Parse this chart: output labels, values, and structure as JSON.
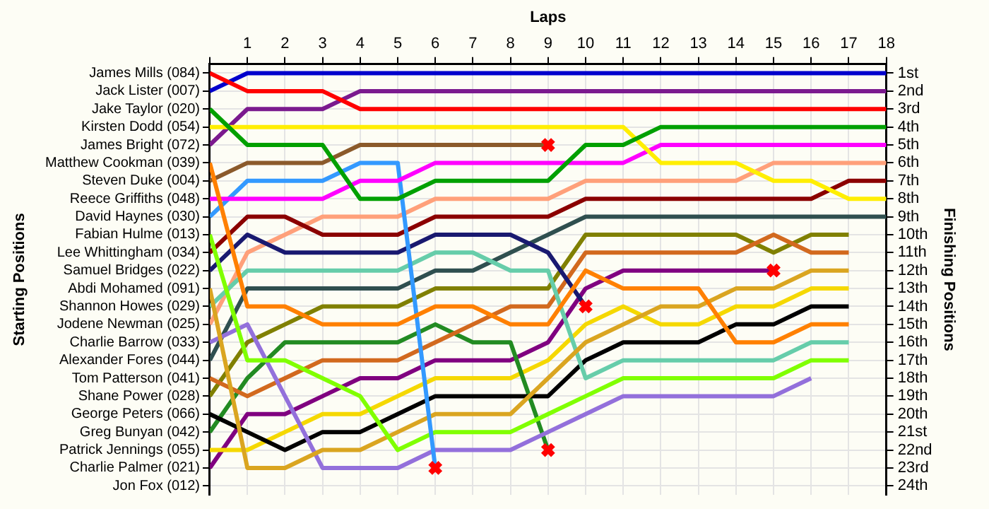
{
  "chart_data": {
    "type": "line",
    "xlabel": "Laps",
    "annotations": [
      "Starting Positions"
    ],
    "y2label": "Finishing Positions",
    "x": [
      0,
      1,
      2,
      3,
      4,
      5,
      6,
      7,
      8,
      9,
      10,
      11,
      12,
      13,
      14,
      15,
      16,
      17,
      18
    ],
    "xlim": [
      0,
      18
    ],
    "xticks": [
      {
        "value": 0,
        "label": null
      },
      1,
      2,
      3,
      4,
      5,
      6,
      7,
      8,
      9,
      10,
      11,
      12,
      13,
      14,
      15,
      16,
      17,
      18
    ],
    "y_categories": [
      "James Mills (084)",
      "Jack Lister (007)",
      "Jake Taylor (020)",
      "Kirsten Dodd (054)",
      "James Bright (072)",
      "Matthew Cookman (039)",
      "Steven Duke (004)",
      "Reece Griffiths (048)",
      "David Haynes (030)",
      "Fabian Hulme (013)",
      "Lee Whittingham (034)",
      "Samuel Bridges (022)",
      "Abdi Mohamed (091)",
      "Shannon Howes (029)",
      "Jodene Newman (025)",
      "Charlie Barrow (033)",
      "Alexander Fores (044)",
      "Tom Patterson (041)",
      "Shane Power (028)",
      "George Peters (066)",
      "Greg Bunyan (042)",
      "Patrick Jennings (055)",
      "Charlie Palmer (021)",
      "Jon Fox (012)"
    ],
    "y2lim": [
      24.5,
      0.5
    ],
    "y2ticks": [
      {
        "value": 1,
        "label": "1st"
      },
      {
        "value": 2,
        "label": "2nd"
      },
      {
        "value": 3,
        "label": "3rd"
      },
      {
        "value": 4,
        "label": "4th"
      },
      {
        "value": 5,
        "label": "5th"
      },
      {
        "value": 6,
        "label": "6th"
      },
      {
        "value": 7,
        "label": "7th"
      },
      {
        "value": 8,
        "label": "8th"
      },
      {
        "value": 9,
        "label": "9th"
      },
      {
        "value": 10,
        "label": "10th"
      },
      {
        "value": 11,
        "label": "11th"
      },
      {
        "value": 12,
        "label": "12th"
      },
      {
        "value": 13,
        "label": "13th"
      },
      {
        "value": 14,
        "label": "14th"
      },
      {
        "value": 15,
        "label": "15th"
      },
      {
        "value": 16,
        "label": "16th"
      },
      {
        "value": 17,
        "label": "17th"
      },
      {
        "value": 18,
        "label": "18th"
      },
      {
        "value": 19,
        "label": "19th"
      },
      {
        "value": 20,
        "label": "20th"
      },
      {
        "value": 21,
        "label": "21st"
      },
      {
        "value": 22,
        "label": "22nd"
      },
      {
        "value": 23,
        "label": "23rd"
      },
      {
        "value": 24,
        "label": "24th"
      }
    ],
    "grid": true,
    "legend": false,
    "marker": "none",
    "line_style": "solid",
    "series": [
      {
        "axis": "y2",
        "color": "#ff0000",
        "values": [
          1,
          2,
          2,
          2,
          3,
          3,
          3,
          3,
          3,
          3,
          3,
          3,
          3,
          3,
          3,
          3,
          3,
          3,
          3
        ]
      },
      {
        "axis": "y2",
        "color": "#0000cc",
        "values": [
          2,
          1,
          1,
          1,
          1,
          1,
          1,
          1,
          1,
          1,
          1,
          1,
          1,
          1,
          1,
          1,
          1,
          1,
          1
        ]
      },
      {
        "axis": "y2",
        "color": "#00a000",
        "values": [
          3,
          5,
          5,
          5,
          8,
          8,
          7,
          7,
          7,
          7,
          5,
          5,
          4,
          4,
          4,
          4,
          4,
          4,
          4
        ]
      },
      {
        "axis": "y2",
        "color": "#ffee00",
        "values": [
          4,
          4,
          4,
          4,
          4,
          4,
          4,
          4,
          4,
          4,
          4,
          4,
          6,
          6,
          6,
          7,
          7,
          8,
          8
        ]
      },
      {
        "axis": "y2",
        "color": "#7b1a8e",
        "values": [
          5,
          3,
          3,
          3,
          2,
          2,
          2,
          2,
          2,
          2,
          2,
          2,
          2,
          2,
          2,
          2,
          2,
          2,
          2
        ]
      },
      {
        "axis": "y2",
        "color": "#ff8000",
        "values": [
          6,
          14,
          14,
          15,
          15,
          15,
          14,
          14,
          15,
          15,
          12,
          13,
          13,
          13,
          16,
          16,
          15,
          15,
          null
        ]
      },
      {
        "axis": "y2",
        "color": "#8b5a2b",
        "values": [
          7,
          6,
          6,
          6,
          5,
          5,
          5,
          5,
          5,
          5,
          null,
          null,
          null,
          null,
          null,
          null,
          null,
          null,
          null
        ]
      },
      {
        "axis": "y2",
        "color": "#ff00ff",
        "values": [
          8,
          8,
          8,
          8,
          7,
          7,
          6,
          6,
          6,
          6,
          6,
          6,
          5,
          5,
          5,
          5,
          5,
          5,
          5
        ]
      },
      {
        "axis": "y2",
        "color": "#3399ff",
        "values": [
          9,
          7,
          7,
          7,
          6,
          6,
          23,
          null,
          null,
          null,
          null,
          null,
          null,
          null,
          null,
          null,
          null,
          null,
          null
        ]
      },
      {
        "axis": "y2",
        "color": "#80ff00",
        "values": [
          10,
          17,
          17,
          18,
          19,
          22,
          21,
          21,
          21,
          20,
          19,
          18,
          18,
          18,
          18,
          18,
          17,
          17,
          null
        ]
      },
      {
        "axis": "y2",
        "color": "#8b0000",
        "values": [
          11,
          9,
          9,
          10,
          10,
          10,
          9,
          9,
          9,
          9,
          8,
          8,
          8,
          8,
          8,
          8,
          8,
          7,
          7
        ]
      },
      {
        "axis": "y2",
        "color": "#191970",
        "values": [
          12,
          10,
          11,
          11,
          11,
          11,
          10,
          10,
          10,
          11,
          14,
          null,
          null,
          null,
          null,
          null,
          null,
          null,
          null
        ]
      },
      {
        "axis": "y2",
        "color": "#daa520",
        "values": [
          13,
          23,
          23,
          22,
          22,
          21,
          20,
          20,
          20,
          18,
          16,
          15,
          14,
          14,
          13,
          13,
          12,
          12,
          null
        ]
      },
      {
        "axis": "y2",
        "color": "#66cdaa",
        "values": [
          14,
          12,
          12,
          12,
          12,
          12,
          11,
          11,
          12,
          12,
          18,
          17,
          17,
          17,
          17,
          17,
          16,
          16,
          null
        ]
      },
      {
        "axis": "y2",
        "color": "#ffa07a",
        "values": [
          15,
          11,
          10,
          9,
          9,
          9,
          8,
          8,
          8,
          8,
          7,
          7,
          7,
          7,
          7,
          6,
          6,
          6,
          6
        ]
      },
      {
        "axis": "y2",
        "color": "#9370db",
        "values": [
          16,
          15,
          19,
          23,
          23,
          23,
          22,
          22,
          22,
          21,
          20,
          19,
          19,
          19,
          19,
          19,
          18,
          null,
          null
        ]
      },
      {
        "axis": "y2",
        "color": "#2f4f4f",
        "values": [
          17,
          13,
          13,
          13,
          13,
          13,
          12,
          12,
          11,
          10,
          9,
          9,
          9,
          9,
          9,
          9,
          9,
          9,
          9
        ]
      },
      {
        "axis": "y2",
        "color": "#d2691e",
        "values": [
          18,
          19,
          18,
          17,
          17,
          17,
          16,
          15,
          14,
          14,
          11,
          11,
          11,
          11,
          11,
          10,
          11,
          11,
          null
        ]
      },
      {
        "axis": "y2",
        "color": "#808000",
        "values": [
          19,
          16,
          15,
          14,
          14,
          14,
          13,
          13,
          13,
          13,
          10,
          10,
          10,
          10,
          10,
          11,
          10,
          10,
          null
        ]
      },
      {
        "axis": "y2",
        "color": "#000000",
        "values": [
          20,
          21,
          22,
          21,
          21,
          20,
          19,
          19,
          19,
          19,
          17,
          16,
          16,
          16,
          15,
          15,
          14,
          14,
          null
        ]
      },
      {
        "axis": "y2",
        "color": "#228b22",
        "values": [
          21,
          18,
          16,
          16,
          16,
          16,
          15,
          16,
          16,
          22,
          null,
          null,
          null,
          null,
          null,
          null,
          null,
          null,
          null
        ]
      },
      {
        "axis": "y2",
        "color": "#f5d800",
        "values": [
          22,
          22,
          21,
          20,
          20,
          19,
          18,
          18,
          18,
          17,
          15,
          14,
          15,
          15,
          14,
          14,
          13,
          13,
          null
        ]
      },
      {
        "axis": "y2",
        "color": "#800080",
        "values": [
          23,
          20,
          20,
          19,
          18,
          18,
          17,
          17,
          17,
          16,
          13,
          12,
          12,
          12,
          12,
          12,
          null,
          null,
          null
        ]
      },
      {
        "axis": "y2",
        "type": "scatter",
        "marker": "cross",
        "color": "#ff0000",
        "x": [
          9,
          6,
          10,
          9,
          15
        ],
        "values": [
          5,
          23,
          14,
          22,
          12
        ]
      }
    ]
  }
}
